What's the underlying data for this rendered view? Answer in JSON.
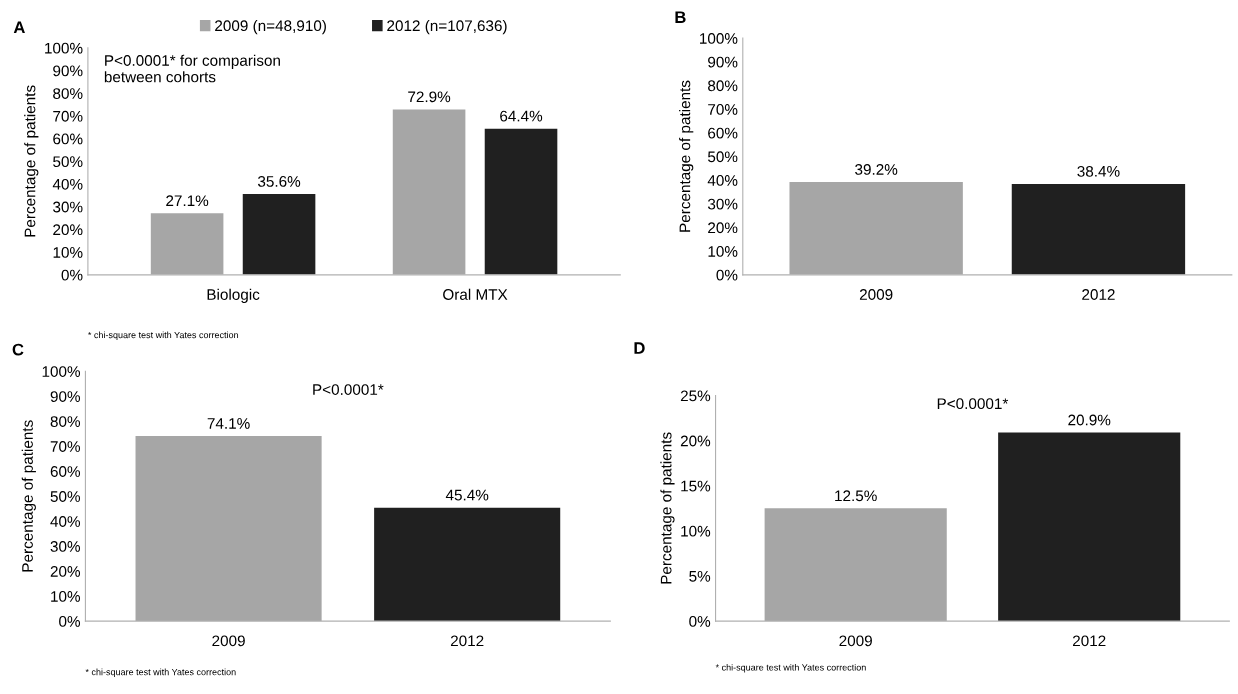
{
  "chart_data": [
    {
      "type": "bar",
      "title": "A",
      "ylabel": "Percentage of patients",
      "categories": [
        "Biologic",
        "Oral MTX"
      ],
      "series": [
        {
          "name": "2009 (n=48,910)",
          "color": "#a6a6a6",
          "values": [
            27.1,
            72.9
          ],
          "value_labels": [
            "27.1%",
            "72.9%"
          ]
        },
        {
          "name": "2012 (n=107,636)",
          "color": "#202020",
          "values": [
            35.6,
            64.4
          ],
          "value_labels": [
            "35.6%",
            "64.4%"
          ]
        }
      ],
      "ylim": [
        0,
        100
      ],
      "yticks": [
        {
          "value": 0,
          "label": "0%"
        },
        {
          "value": 10,
          "label": "10%"
        },
        {
          "value": 20,
          "label": "20%"
        },
        {
          "value": 30,
          "label": "30%"
        },
        {
          "value": 40,
          "label": "40%"
        },
        {
          "value": 50,
          "label": "50%"
        },
        {
          "value": 60,
          "label": "60%"
        },
        {
          "value": 70,
          "label": "70%"
        },
        {
          "value": 80,
          "label": "80%"
        },
        {
          "value": 90,
          "label": "90%"
        },
        {
          "value": 100,
          "label": "100%"
        }
      ],
      "legend": "top",
      "grid": false,
      "annotations": [
        "P<0.0001* for comparison\nbetween cohorts",
        "* chi-square test with Yates correction"
      ]
    },
    {
      "type": "bar",
      "title": "B",
      "ylabel": "Percentage of patients",
      "categories": [
        "2009",
        "2012"
      ],
      "values": [
        39.2,
        38.4
      ],
      "value_labels": [
        "39.2%",
        "38.4%"
      ],
      "colors": [
        "#a6a6a6",
        "#202020"
      ],
      "ylim": [
        0,
        100
      ],
      "yticks": [
        {
          "value": 0,
          "label": "0%"
        },
        {
          "value": 10,
          "label": "10%"
        },
        {
          "value": 20,
          "label": "20%"
        },
        {
          "value": 30,
          "label": "30%"
        },
        {
          "value": 40,
          "label": "40%"
        },
        {
          "value": 50,
          "label": "50%"
        },
        {
          "value": 60,
          "label": "60%"
        },
        {
          "value": 70,
          "label": "70%"
        },
        {
          "value": 80,
          "label": "80%"
        },
        {
          "value": 90,
          "label": "90%"
        },
        {
          "value": 100,
          "label": "100%"
        }
      ],
      "grid": false
    },
    {
      "type": "bar",
      "title": "C",
      "ylabel": "Percentage of patients",
      "categories": [
        "2009",
        "2012"
      ],
      "values": [
        74.1,
        45.4
      ],
      "value_labels": [
        "74.1%",
        "45.4%"
      ],
      "colors": [
        "#a6a6a6",
        "#202020"
      ],
      "ylim": [
        0,
        100
      ],
      "yticks": [
        {
          "value": 0,
          "label": "0%"
        },
        {
          "value": 10,
          "label": "10%"
        },
        {
          "value": 20,
          "label": "20%"
        },
        {
          "value": 30,
          "label": "30%"
        },
        {
          "value": 40,
          "label": "40%"
        },
        {
          "value": 50,
          "label": "50%"
        },
        {
          "value": 60,
          "label": "60%"
        },
        {
          "value": 70,
          "label": "70%"
        },
        {
          "value": 80,
          "label": "80%"
        },
        {
          "value": 90,
          "label": "90%"
        },
        {
          "value": 100,
          "label": "100%"
        }
      ],
      "grid": false,
      "annotations": [
        "P<0.0001*",
        "* chi-square test with Yates correction"
      ]
    },
    {
      "type": "bar",
      "title": "D",
      "ylabel": "Percentage of patients",
      "categories": [
        "2009",
        "2012"
      ],
      "values": [
        12.5,
        20.9
      ],
      "value_labels": [
        "12.5%",
        "20.9%"
      ],
      "colors": [
        "#a6a6a6",
        "#202020"
      ],
      "ylim": [
        0,
        25
      ],
      "yticks": [
        {
          "value": 0,
          "label": "0%"
        },
        {
          "value": 5,
          "label": "5%"
        },
        {
          "value": 10,
          "label": "10%"
        },
        {
          "value": 15,
          "label": "15%"
        },
        {
          "value": 20,
          "label": "20%"
        },
        {
          "value": 25,
          "label": "25%"
        }
      ],
      "grid": false,
      "annotations": [
        "P<0.0001*",
        "* chi-square test with Yates correction"
      ]
    }
  ]
}
